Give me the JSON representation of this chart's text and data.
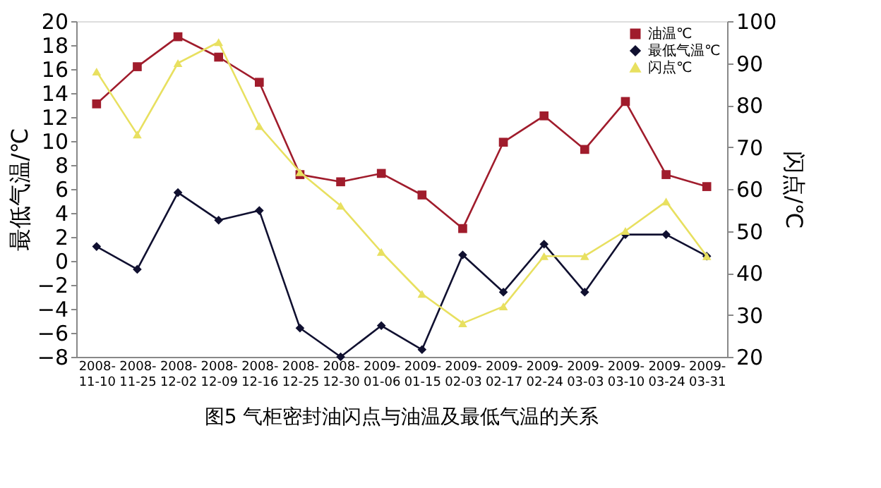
{
  "chart_data": {
    "type": "line",
    "categories": [
      "2008-11-10",
      "2008-11-25",
      "2008-12-02",
      "2008-12-09",
      "2008-12-16",
      "2008-12-25",
      "2008-12-30",
      "2009-01-06",
      "2009-01-15",
      "2009-02-03",
      "2009-02-17",
      "2009-02-24",
      "2009-03-03",
      "2009-03-10",
      "2009-03-24",
      "2009-03-31"
    ],
    "series": [
      {
        "name": "油温℃",
        "color": "#a01c2c",
        "marker": "square",
        "values": [
          13.1,
          16.2,
          18.7,
          17.0,
          14.9,
          7.2,
          6.6,
          7.3,
          5.5,
          2.7,
          9.9,
          12.1,
          9.3,
          13.3,
          7.2,
          6.2
        ]
      },
      {
        "name": "最低气温℃",
        "color": "#101030",
        "marker": "diamond",
        "values": [
          1.2,
          -0.7,
          5.7,
          3.4,
          4.2,
          -5.6,
          -8.0,
          -5.4,
          -7.4,
          0.5,
          -2.6,
          1.4,
          -2.6,
          2.2,
          2.2,
          0.4
        ]
      },
      {
        "name": "闪点℃",
        "color": "#e8e060",
        "marker": "triangle",
        "axis": "y2",
        "values": [
          88,
          73,
          90,
          95,
          75,
          64,
          56,
          45,
          35,
          28,
          32,
          44,
          44,
          50,
          57,
          44
        ]
      }
    ],
    "ylabel": "最低气温/℃",
    "y2label": "闪点/℃",
    "ylim": [
      -8,
      20
    ],
    "yticks": [
      -8,
      -6,
      -4,
      -2,
      0,
      2,
      4,
      6,
      8,
      10,
      12,
      14,
      16,
      18,
      20
    ],
    "y2lim": [
      20,
      100
    ],
    "y2ticks": [
      20,
      30,
      40,
      50,
      60,
      70,
      80,
      90,
      100
    ],
    "legend": "top right",
    "grid": false,
    "line_style": "solid",
    "annotations": [
      "图5  气柜密封油闪点与油温及最低气温的关系"
    ]
  }
}
